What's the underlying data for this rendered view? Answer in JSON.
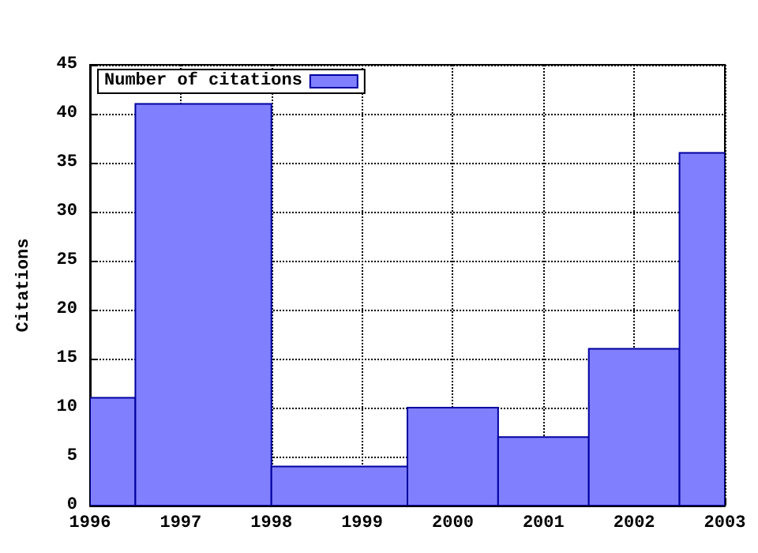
{
  "chart_data": {
    "type": "histogram",
    "ylabel": "Citations",
    "bins": [
      1996,
      1996.5,
      1998,
      1999.5,
      2000.5,
      2001.5,
      2002.5,
      2003
    ],
    "series": [
      {
        "name": "Number of citations",
        "color": "#8080ff",
        "values": [
          11,
          41,
          4,
          10,
          7,
          16,
          36
        ]
      }
    ],
    "xlim": [
      1996,
      2003
    ],
    "xticks": [
      1996,
      1997,
      1998,
      1999,
      2000,
      2001,
      2002,
      2003
    ],
    "ylim": [
      0,
      45
    ],
    "yticks": [
      0,
      5,
      10,
      15,
      20,
      25,
      30,
      35,
      40,
      45
    ],
    "grid": true,
    "legend": "top left"
  }
}
